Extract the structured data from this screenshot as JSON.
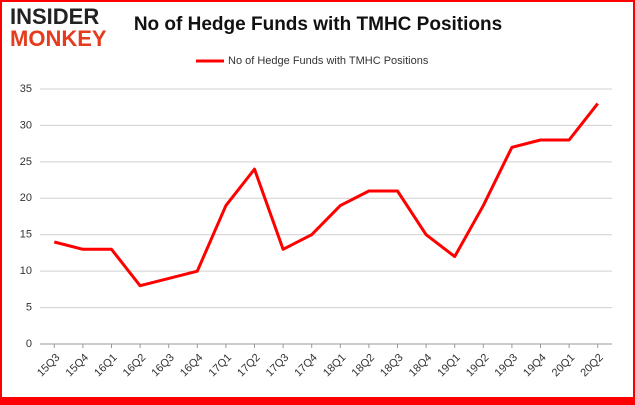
{
  "logo": {
    "line1": "INSIDER",
    "line2": "MONKEY"
  },
  "chart_data": {
    "type": "line",
    "title": "No of Hedge Funds with TMHC Positions",
    "categories": [
      "15Q3",
      "15Q4",
      "16Q1",
      "16Q2",
      "16Q3",
      "16Q4",
      "17Q1",
      "17Q2",
      "17Q3",
      "17Q4",
      "18Q1",
      "18Q2",
      "18Q3",
      "18Q4",
      "19Q1",
      "19Q2",
      "19Q3",
      "19Q4",
      "20Q1",
      "20Q2"
    ],
    "series": [
      {
        "name": "No of Hedge Funds with TMHC Positions",
        "color": "#ff0000",
        "values": [
          14,
          13,
          13,
          8,
          9,
          10,
          19,
          24,
          13,
          15,
          19,
          21,
          21,
          15,
          12,
          19,
          27,
          28,
          28,
          33
        ]
      }
    ],
    "ylim": [
      0,
      35
    ],
    "yticks": [
      0,
      5,
      10,
      15,
      20,
      25,
      30,
      35
    ],
    "grid": true,
    "legend": "top"
  }
}
